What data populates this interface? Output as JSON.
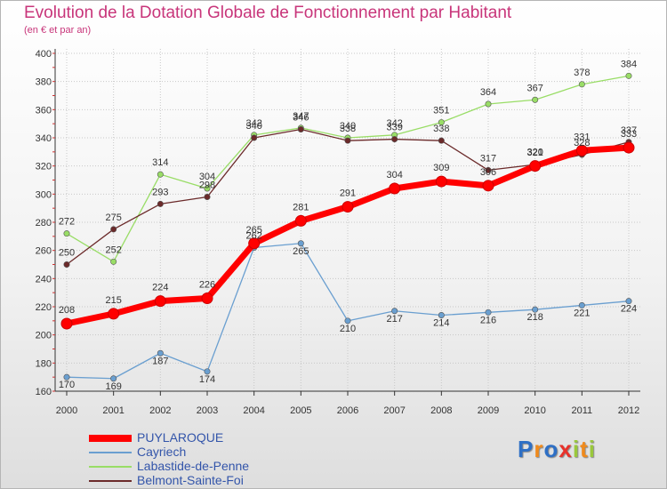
{
  "title": "Evolution de la Dotation Globale de Fonctionnement par Habitant",
  "subtitle": "(en € et par an)",
  "chart_data": {
    "type": "line",
    "title": "Evolution de la Dotation Globale de Fonctionnement par Habitant",
    "ylabel": "(en € et par an)",
    "xlabel": "",
    "x": [
      "2000",
      "2001",
      "2002",
      "2003",
      "2004",
      "2005",
      "2006",
      "2007",
      "2008",
      "2009",
      "2010",
      "2011",
      "2012"
    ],
    "ylim": [
      160,
      400
    ],
    "yticks": [
      160,
      180,
      200,
      220,
      240,
      260,
      280,
      300,
      320,
      340,
      360,
      380,
      400
    ],
    "grid": true,
    "legend": "bottom-left",
    "series": [
      {
        "name": "PUYLAROQUE",
        "color": "#ff0000",
        "values": [
          208,
          215,
          224,
          226,
          265,
          281,
          291,
          304,
          309,
          306,
          320,
          331,
          333
        ]
      },
      {
        "name": "Cayriech",
        "color": "#6a9fd0",
        "values": [
          170,
          169,
          187,
          174,
          262,
          265,
          210,
          217,
          214,
          216,
          218,
          221,
          224
        ]
      },
      {
        "name": "Labastide-de-Penne",
        "color": "#99dd66",
        "values": [
          272,
          252,
          314,
          304,
          342,
          347,
          340,
          342,
          351,
          364,
          367,
          378,
          384
        ]
      },
      {
        "name": "Belmont-Sainte-Foi",
        "color": "#6b2a2a",
        "values": [
          250,
          275,
          293,
          298,
          340,
          346,
          338,
          339,
          338,
          317,
          321,
          328,
          337
        ]
      }
    ]
  },
  "logo": {
    "letters": [
      "P",
      "r",
      "o",
      "x",
      "i",
      "t",
      "i"
    ],
    "colors": [
      "#2e6fc5",
      "#f08a1c",
      "#2e6fc5",
      "#e8312a",
      "#9ac83c",
      "#f08a1c",
      "#9ac83c"
    ]
  }
}
